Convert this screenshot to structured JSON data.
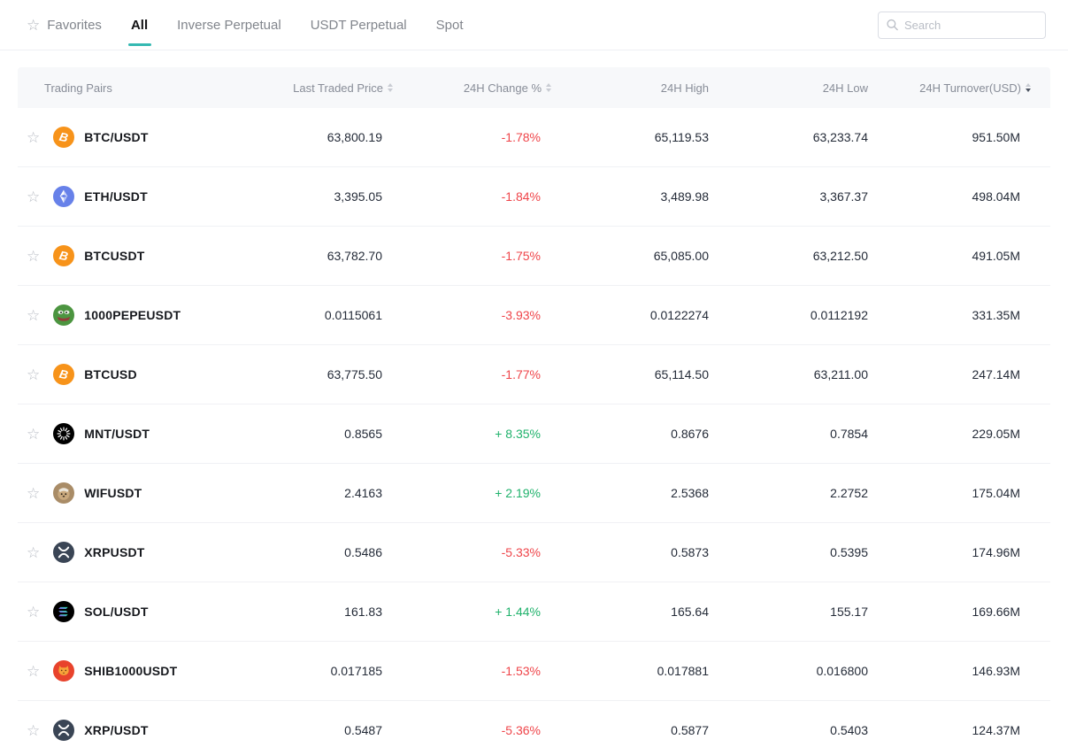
{
  "tabs": {
    "items": [
      {
        "label": "Favorites",
        "icon": "star",
        "active": false
      },
      {
        "label": "All",
        "icon": null,
        "active": true
      },
      {
        "label": "Inverse Perpetual",
        "icon": null,
        "active": false
      },
      {
        "label": "USDT Perpetual",
        "icon": null,
        "active": false
      },
      {
        "label": "Spot",
        "icon": null,
        "active": false
      }
    ]
  },
  "search": {
    "placeholder": "Search"
  },
  "table": {
    "columns": [
      {
        "label": "Trading Pairs",
        "align": "left",
        "sortable": false,
        "sorted": null
      },
      {
        "label": "Last Traded Price",
        "align": "right",
        "sortable": true,
        "sorted": null
      },
      {
        "label": "24H Change %",
        "align": "right",
        "sortable": true,
        "sorted": null
      },
      {
        "label": "24H High",
        "align": "right",
        "sortable": false,
        "sorted": null
      },
      {
        "label": "24H Low",
        "align": "right",
        "sortable": false,
        "sorted": null
      },
      {
        "label": "24H Turnover(USD)",
        "align": "right",
        "sortable": true,
        "sorted": "desc"
      }
    ],
    "rows": [
      {
        "favorited": false,
        "icon": "btc",
        "pair": "BTC/USDT",
        "last_price": "63,800.19",
        "change": "-1.78%",
        "change_direction": "down",
        "high": "65,119.53",
        "low": "63,233.74",
        "turnover": "951.50M"
      },
      {
        "favorited": false,
        "icon": "eth",
        "pair": "ETH/USDT",
        "last_price": "3,395.05",
        "change": "-1.84%",
        "change_direction": "down",
        "high": "3,489.98",
        "low": "3,367.37",
        "turnover": "498.04M"
      },
      {
        "favorited": false,
        "icon": "btc",
        "pair": "BTCUSDT",
        "last_price": "63,782.70",
        "change": "-1.75%",
        "change_direction": "down",
        "high": "65,085.00",
        "low": "63,212.50",
        "turnover": "491.05M"
      },
      {
        "favorited": false,
        "icon": "pepe",
        "pair": "1000PEPEUSDT",
        "last_price": "0.0115061",
        "change": "-3.93%",
        "change_direction": "down",
        "high": "0.0122274",
        "low": "0.0112192",
        "turnover": "331.35M"
      },
      {
        "favorited": false,
        "icon": "btc",
        "pair": "BTCUSD",
        "last_price": "63,775.50",
        "change": "-1.77%",
        "change_direction": "down",
        "high": "65,114.50",
        "low": "63,211.00",
        "turnover": "247.14M"
      },
      {
        "favorited": false,
        "icon": "mnt",
        "pair": "MNT/USDT",
        "last_price": "0.8565",
        "change": "+ 8.35%",
        "change_direction": "up",
        "high": "0.8676",
        "low": "0.7854",
        "turnover": "229.05M"
      },
      {
        "favorited": false,
        "icon": "wif",
        "pair": "WIFUSDT",
        "last_price": "2.4163",
        "change": "+ 2.19%",
        "change_direction": "up",
        "high": "2.5368",
        "low": "2.2752",
        "turnover": "175.04M"
      },
      {
        "favorited": false,
        "icon": "xrp",
        "pair": "XRPUSDT",
        "last_price": "0.5486",
        "change": "-5.33%",
        "change_direction": "down",
        "high": "0.5873",
        "low": "0.5395",
        "turnover": "174.96M"
      },
      {
        "favorited": false,
        "icon": "sol",
        "pair": "SOL/USDT",
        "last_price": "161.83",
        "change": "+ 1.44%",
        "change_direction": "up",
        "high": "165.64",
        "low": "155.17",
        "turnover": "169.66M"
      },
      {
        "favorited": false,
        "icon": "shib",
        "pair": "SHIB1000USDT",
        "last_price": "0.017185",
        "change": "-1.53%",
        "change_direction": "down",
        "high": "0.017881",
        "low": "0.016800",
        "turnover": "146.93M"
      },
      {
        "favorited": false,
        "icon": "xrp",
        "pair": "XRP/USDT",
        "last_price": "0.5487",
        "change": "-5.36%",
        "change_direction": "down",
        "high": "0.5877",
        "low": "0.5403",
        "turnover": "124.37M"
      }
    ]
  },
  "colors": {
    "positive": "#20B26C",
    "negative": "#EF454A",
    "accent_underline": "#35B9B2",
    "btc": "#F7931A",
    "eth": "#6781E9",
    "pepe": "#4C9540",
    "mnt": "#000000",
    "wif": "#A98C67",
    "xrp": "#3A4555",
    "sol": "#000000",
    "shib": "#E8432C"
  }
}
